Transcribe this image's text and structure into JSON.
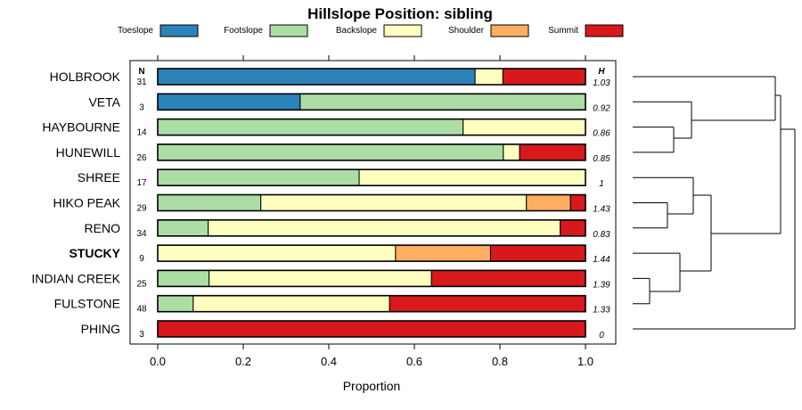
{
  "chart_data": {
    "type": "bar",
    "orientation": "horizontal",
    "stacked": true,
    "title": "Hillslope Position: sibling",
    "xlabel": "Proportion",
    "ylabel": "",
    "xlim": [
      0,
      1
    ],
    "xticks": [
      0.0,
      0.2,
      0.4,
      0.6,
      0.8,
      1.0
    ],
    "xtick_labels": [
      "0.0",
      "0.2",
      "0.4",
      "0.6",
      "0.8",
      "1.0"
    ],
    "n_header": "N",
    "h_header": "H",
    "legend_position": "top",
    "dendrogram": "right",
    "series": [
      {
        "name": "Toeslope",
        "color": "#2b83ba"
      },
      {
        "name": "Footslope",
        "color": "#abdda4"
      },
      {
        "name": "Backslope",
        "color": "#ffffbf"
      },
      {
        "name": "Shoulder",
        "color": "#fdae61"
      },
      {
        "name": "Summit",
        "color": "#d7191c"
      }
    ],
    "rows": [
      {
        "label": "HOLBROOK",
        "n": "31",
        "h": "1.03",
        "bold": false,
        "values": [
          0.742,
          0,
          0.065,
          0,
          0.193
        ]
      },
      {
        "label": "VETA",
        "n": "3",
        "h": "0.92",
        "bold": false,
        "values": [
          0.333,
          0.667,
          0,
          0,
          0
        ]
      },
      {
        "label": "HAYBOURNE",
        "n": "14",
        "h": "0.86",
        "bold": false,
        "values": [
          0,
          0.714,
          0.286,
          0,
          0
        ]
      },
      {
        "label": "HUNEWILL",
        "n": "26",
        "h": "0.85",
        "bold": false,
        "values": [
          0,
          0.808,
          0.038,
          0,
          0.154
        ]
      },
      {
        "label": "SHREE",
        "n": "17",
        "h": "1",
        "bold": false,
        "values": [
          0,
          0.471,
          0.529,
          0,
          0
        ]
      },
      {
        "label": "HIKO PEAK",
        "n": "29",
        "h": "1.43",
        "bold": false,
        "values": [
          0,
          0.241,
          0.621,
          0.103,
          0.035
        ]
      },
      {
        "label": "RENO",
        "n": "34",
        "h": "0.83",
        "bold": false,
        "values": [
          0,
          0.118,
          0.823,
          0,
          0.059
        ]
      },
      {
        "label": "STUCKY",
        "n": "9",
        "h": "1.44",
        "bold": true,
        "values": [
          0,
          0,
          0.556,
          0.222,
          0.222
        ]
      },
      {
        "label": "INDIAN CREEK",
        "n": "25",
        "h": "1.39",
        "bold": false,
        "values": [
          0,
          0.12,
          0.52,
          0,
          0.36
        ]
      },
      {
        "label": "FULSTONE",
        "n": "48",
        "h": "1.33",
        "bold": false,
        "values": [
          0,
          0.083,
          0.459,
          0,
          0.458
        ]
      },
      {
        "label": "PHING",
        "n": "3",
        "h": "0",
        "bold": false,
        "values": [
          0,
          0,
          0,
          0,
          1.0
        ]
      }
    ]
  }
}
